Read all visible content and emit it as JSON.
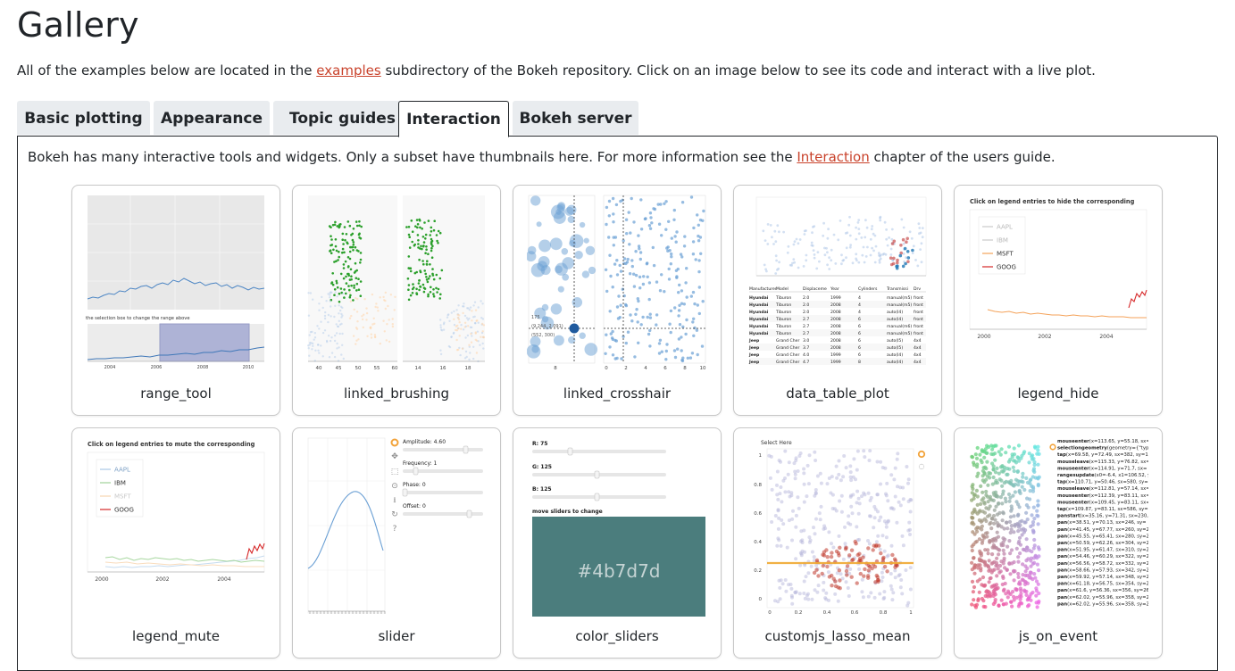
{
  "heading": "Gallery",
  "intro": {
    "before": "All of the examples below are located in the ",
    "link": "examples",
    "after": " subdirectory of the Bokeh repository. Click on an image below to see its code and interact with a live plot."
  },
  "tabs": [
    {
      "label": "Basic plotting",
      "active": false
    },
    {
      "label": "Appearance",
      "active": false
    },
    {
      "label": "Topic guides",
      "active": false
    },
    {
      "label": "Interaction",
      "active": true
    },
    {
      "label": "Bokeh server",
      "active": false
    }
  ],
  "panel": {
    "before": "Bokeh has many interactive tools and widgets. Only a subset have thumbnails here. For more information see the ",
    "link": "Interaction",
    "after": " chapter of the users guide."
  },
  "colors": {
    "link": "#c9422b",
    "bokeh_blue": "#1f77b4",
    "bokeh_green": "#2ca02c",
    "bokeh_orange": "#ff7f0e",
    "bokeh_red": "#d62728",
    "swatch": "#4b7d7d"
  },
  "gallery": [
    {
      "caption": "range_tool",
      "thumb_text": {
        "note": "the selection box to change the range above",
        "ticks": [
          "2004",
          "2006",
          "2008",
          "2010"
        ]
      }
    },
    {
      "caption": "linked_brushing",
      "thumb_text": {
        "ticks_left": [
          "40",
          "45",
          "50",
          "55",
          "60"
        ],
        "ticks_right": [
          "14",
          "16",
          "18"
        ]
      }
    },
    {
      "caption": "linked_crosshair",
      "thumb_text": {
        "hover": [
          "175",
          "(9.244, 2.091)",
          "(552, 300)"
        ],
        "ticks": [
          "8",
          "0",
          "2",
          "4",
          "6",
          "8",
          "10"
        ]
      }
    },
    {
      "caption": "data_table_plot",
      "thumb_text": {
        "headers": [
          "Manufacturer",
          "Model",
          "Displacement",
          "Year",
          "Cylinders",
          "Transmission",
          "Drv"
        ],
        "rows": [
          [
            "Hyundai",
            "Tiburon",
            "2.0",
            "1999",
            "4",
            "manual(m5)",
            "front"
          ],
          [
            "Hyundai",
            "Tiburon",
            "2.0",
            "2008",
            "4",
            "manual(m5)",
            "front"
          ],
          [
            "Hyundai",
            "Tiburon",
            "2.0",
            "2008",
            "4",
            "auto(l4)",
            "front"
          ],
          [
            "Hyundai",
            "Tiburon",
            "2.7",
            "2008",
            "6",
            "auto(l4)",
            "front"
          ],
          [
            "Hyundai",
            "Tiburon",
            "2.7",
            "2008",
            "6",
            "manual(m6)",
            "front"
          ],
          [
            "Hyundai",
            "Tiburon",
            "2.7",
            "2008",
            "6",
            "manual(m5)",
            "front"
          ],
          [
            "Jeep",
            "Grand Cherokee",
            "3.0",
            "2008",
            "6",
            "auto(l5)",
            "4x4"
          ],
          [
            "Jeep",
            "Grand Cherokee",
            "3.7",
            "2008",
            "6",
            "auto(l5)",
            "4x4"
          ],
          [
            "Jeep",
            "Grand Cherokee",
            "4.0",
            "1999",
            "6",
            "auto(l4)",
            "4x4"
          ],
          [
            "Jeep",
            "Grand Cherokee",
            "4.7",
            "1999",
            "8",
            "auto(l4)",
            "4x4"
          ]
        ]
      }
    },
    {
      "caption": "legend_hide",
      "thumb_text": {
        "title": "Click on legend entries to hide the corresponding",
        "legend": [
          "AAPL",
          "IBM",
          "MSFT",
          "GOOG"
        ],
        "ticks": [
          "2000",
          "2002",
          "2004"
        ]
      }
    },
    {
      "caption": "legend_mute",
      "thumb_text": {
        "title": "Click on legend entries to mute the corresponding",
        "legend": [
          "AAPL",
          "IBM",
          "MSFT",
          "GOOG"
        ],
        "ticks": [
          "2000",
          "2002",
          "2004"
        ]
      }
    },
    {
      "caption": "slider",
      "thumb_text": {
        "sliders": [
          "Amplitude: 4.60",
          "Frequency: 1",
          "Phase: 0",
          "Offset: 0"
        ]
      }
    },
    {
      "caption": "color_sliders",
      "thumb_text": {
        "sliders": [
          "R: 75",
          "G: 125",
          "B: 125"
        ],
        "hint": "move sliders to change",
        "swatch_label": "#4b7d7d"
      }
    },
    {
      "caption": "customjs_lasso_mean",
      "thumb_text": {
        "title": "Select Here",
        "yticks": [
          "1",
          "0.8",
          "0.6",
          "0.4",
          "0.2",
          "0"
        ],
        "xticks": [
          "0",
          "0.2",
          "0.4",
          "0.6",
          "0.8",
          "1"
        ]
      }
    },
    {
      "caption": "js_on_event",
      "thumb_text": {
        "events": [
          "mouseenter(x=113.65, y=55.18, sx=",
          "selectiongeometry(geometry={\"type",
          "tap(x=69.58, y=72.49, sx=382, sy=18",
          "mouseleave(x=115.33, y=76.82, sx=",
          "mouseenter(x=114.91, y=71.7, sx=",
          "rangesupdate(x0=-6.4, x1=106.52, y",
          "tap(x=110.71, y=50.46, sx=580, sy=2",
          "mouseleave(x=112.81, y=57.14, sx=",
          "mouseenter(x=112.39, y=83.11, sx=",
          "mouseenter(x=109.45, y=83.11, sx=",
          "tap(x=109.87, y=83.11, sx=586, sy=",
          "panstart(x=35.16, y=71.31, sx=230,",
          "pan(x=38.51, y=70.13, sx=246, sy=",
          "pan(x=41.45, y=67.77, sx=260, sy=2",
          "pan(x=45.55, y=65.41, sx=280, sy=2",
          "pan(x=50.59, y=62.26, sx=304, sy=2",
          "pan(x=51.95, y=61.47, sx=310, sy=2",
          "pan(x=54.46, y=60.29, sx=322, sy=2",
          "pan(x=56.56, y=58.72, sx=332, sy=2",
          "pan(x=58.66, y=57.93, sx=342, sy=2",
          "pan(x=59.92, y=57.14, sx=348, sy=2",
          "pan(x=61.18, y=56.75, sx=354, sy=2",
          "pan(x=61.6, y=56.36, sx=356, sy=26",
          "pan(x=62.02, y=55.96, sx=358, sy=2",
          "pan(x=62.02, y=55.96, sx=358, sy=2"
        ]
      }
    }
  ]
}
